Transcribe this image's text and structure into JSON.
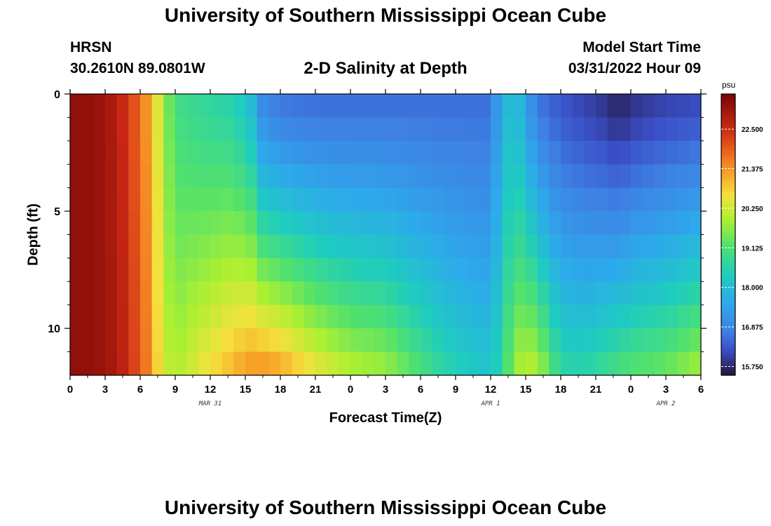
{
  "page": {
    "title": "University of Southern Mississippi Ocean Cube",
    "station": "HRSN",
    "coords": "30.2610N  89.0801W",
    "model_start_label": "Model Start Time",
    "model_start_value": "03/31/2022 Hour 09",
    "bottom_title": "University of Southern Mississippi Ocean Cube"
  },
  "chart_data": {
    "type": "heatmap",
    "title": "2-D Salinity at Depth",
    "xlabel": "Forecast Time(Z)",
    "ylabel": "Depth (ft)",
    "x_tick_labels": [
      "0",
      "3",
      "6",
      "9",
      "12",
      "15",
      "18",
      "21",
      "0",
      "3",
      "6",
      "9",
      "12",
      "15",
      "18",
      "21",
      "0",
      "3",
      "6"
    ],
    "x_hours_range": [
      0,
      54
    ],
    "day_labels": [
      {
        "label": "MAR 31",
        "hour": 12
      },
      {
        "label": "APR 1",
        "hour": 36
      },
      {
        "label": "APR 2",
        "hour": 51
      }
    ],
    "y_ticks": [
      0,
      5,
      10
    ],
    "ylim": [
      0,
      12
    ],
    "y_reversed": true,
    "colorbar": {
      "unit": "psu",
      "range": [
        15.5,
        23.5
      ],
      "ticks": [
        "22.500",
        "21.375",
        "20.250",
        "19.125",
        "18.000",
        "16.875",
        "15.750"
      ],
      "tick_values": [
        22.5,
        21.375,
        20.25,
        19.125,
        18.0,
        16.875,
        15.75
      ]
    },
    "depth_levels": [
      0.5,
      1.5,
      2.5,
      3.5,
      4.5,
      5.5,
      6.5,
      7.5,
      8.5,
      9.5,
      10.5,
      11.5
    ],
    "surface_profile": {
      "hours": [
        0,
        2,
        4,
        6,
        7,
        8,
        9,
        12,
        14,
        15.5,
        16.5,
        18,
        21,
        24,
        30,
        36,
        37,
        38,
        39,
        40,
        42,
        45,
        46,
        47,
        48,
        51,
        54
      ],
      "values": [
        23.2,
        23.2,
        22.8,
        21.8,
        21.0,
        19.8,
        19.0,
        18.7,
        18.6,
        18.0,
        17.0,
        16.7,
        16.6,
        16.6,
        16.6,
        16.6,
        17.8,
        18.2,
        17.5,
        16.7,
        16.3,
        16.0,
        15.9,
        15.7,
        15.9,
        16.1,
        16.2
      ]
    },
    "bottom_profile": {
      "hours": [
        0,
        2,
        4,
        6,
        7,
        8,
        9,
        12,
        14,
        15,
        16,
        18,
        21,
        24,
        27,
        30,
        33,
        36,
        37,
        38,
        39,
        40,
        41,
        42,
        44,
        46,
        48,
        51,
        54
      ],
      "values": [
        23.2,
        23.2,
        22.9,
        22.0,
        21.3,
        20.2,
        19.9,
        20.6,
        21.0,
        21.2,
        21.3,
        21.1,
        20.4,
        19.9,
        19.7,
        19.0,
        18.4,
        18.1,
        18.7,
        19.7,
        20.0,
        19.9,
        19.2,
        18.6,
        18.5,
        18.8,
        19.1,
        19.3,
        19.8
      ]
    }
  }
}
